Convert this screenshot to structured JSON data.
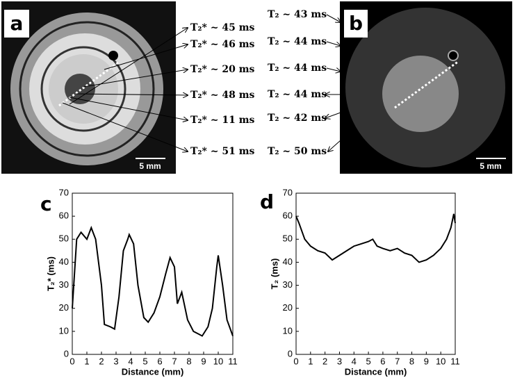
{
  "panels": {
    "a": {
      "label": "a",
      "scale": "5 mm",
      "annotations": [
        "T₂* ~ 45 ms",
        "T₂* ~ 46 ms",
        "T₂* ~ 20 ms",
        "T₂* ~ 48 ms",
        "T₂* ~ 11 ms",
        "T₂* ~ 51 ms"
      ]
    },
    "b": {
      "label": "b",
      "scale": "5 mm",
      "annotations": [
        "T₂ ~ 43 ms",
        "T₂ ~ 44 ms",
        "T₂ ~ 44 ms",
        "T₂ ~ 44 ms",
        "T₂ ~ 42 ms",
        "T₂ ~ 50 ms"
      ]
    }
  },
  "chart_data": [
    {
      "type": "line",
      "panel": "c",
      "xlabel": "Distance (mm)",
      "ylabel": "T₂* (ms)",
      "color": "#000000",
      "x": [
        0,
        0.3,
        0.6,
        1.0,
        1.3,
        1.6,
        2.0,
        2.2,
        2.6,
        2.9,
        3.2,
        3.5,
        3.8,
        3.9,
        4.2,
        4.5,
        4.9,
        5.2,
        5.6,
        6.0,
        6.4,
        6.7,
        7.0,
        7.2,
        7.5,
        7.9,
        8.3,
        8.6,
        8.9,
        9.3,
        9.6,
        9.9,
        10.0,
        10.3,
        10.6,
        11.0
      ],
      "values": [
        20,
        50,
        53,
        50,
        55,
        50,
        30,
        13,
        12,
        11,
        25,
        45,
        50,
        52,
        48,
        30,
        16,
        14,
        18,
        25,
        35,
        42,
        38,
        22,
        27,
        15,
        10,
        9,
        8,
        12,
        20,
        38,
        43,
        30,
        15,
        8
      ],
      "xlim": [
        0,
        11
      ],
      "ylim": [
        0,
        70
      ],
      "xticks": [
        0,
        1,
        2,
        3,
        4,
        5,
        6,
        7,
        8,
        9,
        10,
        11
      ],
      "yticks": [
        0,
        10,
        20,
        30,
        40,
        50,
        60,
        70
      ]
    },
    {
      "type": "line",
      "panel": "d",
      "xlabel": "Distance (mm)",
      "ylabel": "T₂ (ms)",
      "color": "#000000",
      "x": [
        0,
        0.2,
        0.6,
        1.0,
        1.5,
        2.0,
        2.5,
        3.0,
        3.5,
        4.0,
        4.5,
        5.0,
        5.3,
        5.6,
        6.0,
        6.5,
        7.0,
        7.5,
        8.0,
        8.5,
        9.0,
        9.5,
        10.0,
        10.4,
        10.7,
        10.9,
        11.0
      ],
      "values": [
        60,
        57,
        50,
        47,
        45,
        44,
        41,
        43,
        45,
        47,
        48,
        49,
        50,
        47,
        46,
        45,
        46,
        44,
        43,
        40,
        41,
        43,
        46,
        50,
        55,
        61,
        57
      ],
      "xlim": [
        0,
        11
      ],
      "ylim": [
        0,
        70
      ],
      "xticks": [
        0,
        1,
        2,
        3,
        4,
        5,
        6,
        7,
        8,
        9,
        10,
        11
      ],
      "yticks": [
        0,
        10,
        20,
        30,
        40,
        50,
        60,
        70
      ]
    }
  ]
}
